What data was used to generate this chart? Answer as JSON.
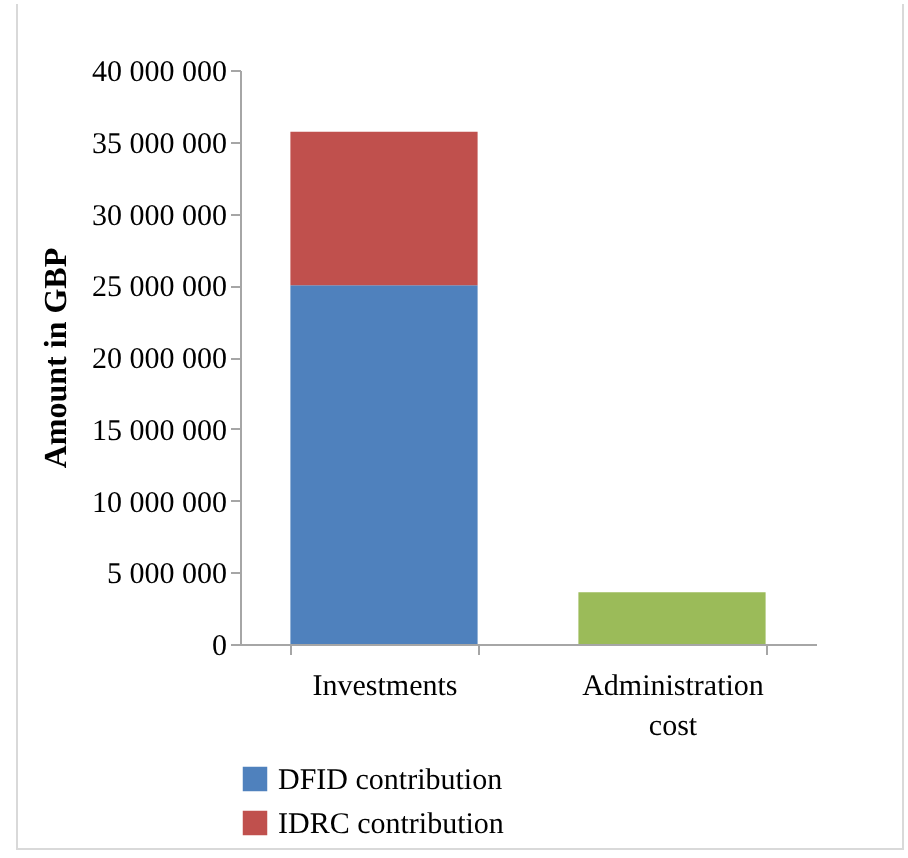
{
  "chart_data": {
    "type": "bar",
    "stacked": true,
    "ylabel": "Amount in GBP",
    "categories": [
      "Investments",
      "Administration cost"
    ],
    "series": [
      {
        "name": "DFID contribution",
        "color": "#4f81bd",
        "values": [
          25000000,
          null
        ]
      },
      {
        "name": "IDRC contribution",
        "color": "#c0504d",
        "values": [
          10700000,
          null
        ]
      },
      {
        "color": "#9bbb59",
        "values": [
          null,
          3600000
        ]
      }
    ],
    "ylim": [
      0,
      40000000
    ],
    "yticks": [
      {
        "value": 0,
        "label": "0"
      },
      {
        "value": 5000000,
        "label": "5 000 000"
      },
      {
        "value": 10000000,
        "label": "10 000 000"
      },
      {
        "value": 15000000,
        "label": "15 000 000"
      },
      {
        "value": 20000000,
        "label": "20 000 000"
      },
      {
        "value": 25000000,
        "label": "25 000 000"
      },
      {
        "value": 30000000,
        "label": "30 000 000"
      },
      {
        "value": 35000000,
        "label": "35 000 000"
      },
      {
        "value": 40000000,
        "label": "40 000 000"
      }
    ],
    "legend": "bottom"
  }
}
